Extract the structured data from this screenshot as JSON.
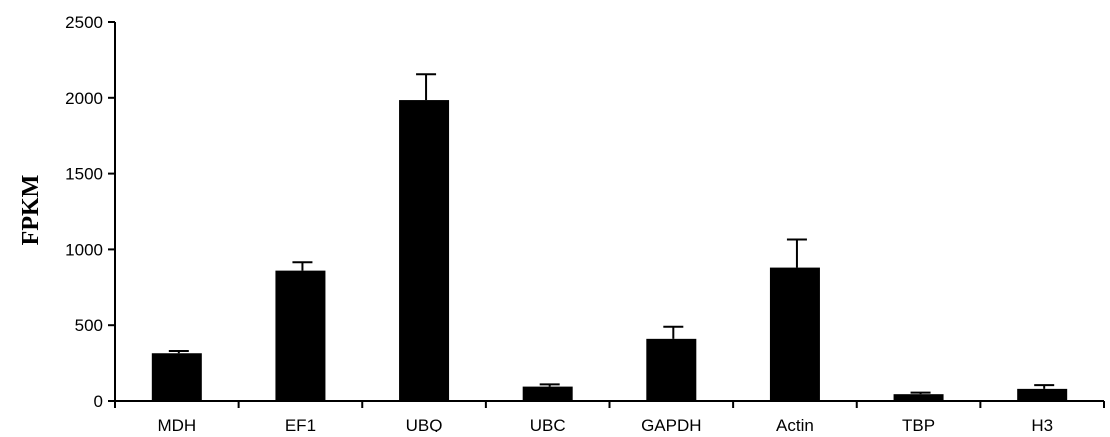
{
  "chart_data": {
    "type": "bar",
    "title": "",
    "xlabel": "",
    "ylabel": "FPKM",
    "ylim": [
      0,
      2500
    ],
    "yticks": [
      0,
      500,
      1000,
      1500,
      2000,
      2500
    ],
    "grid": false,
    "legend": "none",
    "categories": [
      "MDH",
      "EF1",
      "UBQ",
      "UBC",
      "GAPDH",
      "Actin",
      "TBP",
      "H3"
    ],
    "series": [
      {
        "values": [
          315,
          860,
          1985,
          95,
          410,
          880,
          45,
          80
        ],
        "errors": [
          15,
          55,
          170,
          15,
          80,
          185,
          10,
          25
        ]
      }
    ],
    "bar_color": "#000000"
  }
}
